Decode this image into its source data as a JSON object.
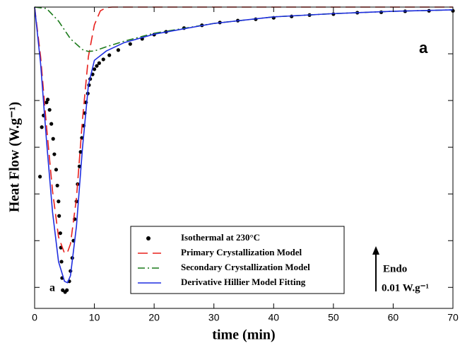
{
  "chart_data": {
    "type": "line",
    "x_label": "time (min)",
    "y_label": "Heat Flow (W.g⁻¹)",
    "xlim": [
      0,
      70
    ],
    "xticks": [
      0,
      10,
      20,
      30,
      40,
      50,
      60,
      70
    ],
    "ylim": [
      -0.0645,
      0
    ],
    "yticks": [
      0,
      -0.01,
      -0.02,
      -0.03,
      -0.04,
      -0.05,
      -0.06
    ],
    "annotations": {
      "panel": "a",
      "curve": "a",
      "arrow": "Endo",
      "scale": "0.01 W.g⁻¹"
    },
    "series": [
      {
        "name": "Isothermal at 230°C",
        "color": "#000000",
        "style": "dots",
        "x": [
          0.9,
          1.2,
          1.5,
          2.0,
          2.2,
          2.5,
          2.8,
          3.1,
          3.3,
          3.6,
          3.8,
          4.0,
          4.1,
          4.3,
          4.4,
          4.5,
          4.6,
          4.7,
          5.1,
          5.4,
          5.8,
          6.0,
          6.3,
          6.5,
          6.7,
          7.0,
          7.2,
          7.5,
          7.7,
          7.9,
          8.2,
          8.4,
          8.6,
          8.9,
          9.1,
          9.3,
          9.7,
          10.0,
          10.4,
          10.8,
          11.5,
          12.5,
          14,
          16,
          18,
          20,
          22,
          25,
          28,
          31,
          34,
          37,
          40,
          43,
          46,
          50,
          54,
          58,
          62,
          66,
          70
        ],
        "values": [
          -0.0363,
          -0.0257,
          -0.0232,
          -0.0204,
          -0.0198,
          -0.022,
          -0.025,
          -0.0282,
          -0.0315,
          -0.0348,
          -0.0382,
          -0.0416,
          -0.0447,
          -0.0484,
          -0.0515,
          -0.0545,
          -0.058,
          -0.0606,
          -0.061,
          -0.0606,
          -0.0587,
          -0.0565,
          -0.0537,
          -0.05,
          -0.0454,
          -0.0416,
          -0.0379,
          -0.0341,
          -0.031,
          -0.028,
          -0.0254,
          -0.0227,
          -0.0204,
          -0.0185,
          -0.0167,
          -0.0154,
          -0.0144,
          -0.0133,
          -0.0126,
          -0.012,
          -0.0112,
          -0.0103,
          -0.0092,
          -0.0079,
          -0.0068,
          -0.0059,
          -0.0053,
          -0.0045,
          -0.0039,
          -0.0033,
          -0.0029,
          -0.0026,
          -0.0023,
          -0.002,
          -0.0017,
          -0.0015,
          -0.0012,
          -0.0011,
          -0.0009,
          -0.0008,
          -0.0008
        ]
      },
      {
        "name": "Primary Crystallization Model",
        "color": "#e8201c",
        "style": "dashed",
        "x": [
          0,
          1,
          2,
          3,
          4,
          5,
          5.5,
          6,
          7,
          8,
          9,
          10,
          11,
          12,
          13,
          70
        ],
        "values": [
          0,
          -0.0106,
          -0.0257,
          -0.0394,
          -0.0492,
          -0.0527,
          -0.0525,
          -0.0507,
          -0.0409,
          -0.0242,
          -0.0106,
          -0.0038,
          -0.0008,
          -0.0001,
          0,
          0
        ]
      },
      {
        "name": "Secondary Crystallization Model",
        "color": "#1a7a1a",
        "style": "dashdot",
        "x": [
          0,
          2,
          4,
          6,
          8,
          9,
          10,
          12,
          15,
          20,
          30,
          40,
          50,
          60,
          70
        ],
        "values": [
          0,
          -0.0003,
          -0.003,
          -0.0068,
          -0.0091,
          -0.0095,
          -0.0094,
          -0.0085,
          -0.0073,
          -0.0056,
          -0.0035,
          -0.0021,
          -0.0014,
          -0.0009,
          -0.0006
        ]
      },
      {
        "name": "Derivative Hillier Model Fitting",
        "color": "#1f2ee0",
        "style": "solid",
        "x": [
          0,
          1,
          2,
          3,
          4,
          5,
          5.5,
          6,
          7,
          8,
          9,
          10,
          12,
          15,
          20,
          30,
          40,
          50,
          60,
          70
        ],
        "values": [
          0,
          -0.0121,
          -0.0288,
          -0.0439,
          -0.0545,
          -0.0587,
          -0.059,
          -0.0575,
          -0.0469,
          -0.0303,
          -0.0167,
          -0.0114,
          -0.0094,
          -0.0076,
          -0.0058,
          -0.0035,
          -0.0021,
          -0.0014,
          -0.0009,
          -0.0006
        ]
      }
    ]
  }
}
